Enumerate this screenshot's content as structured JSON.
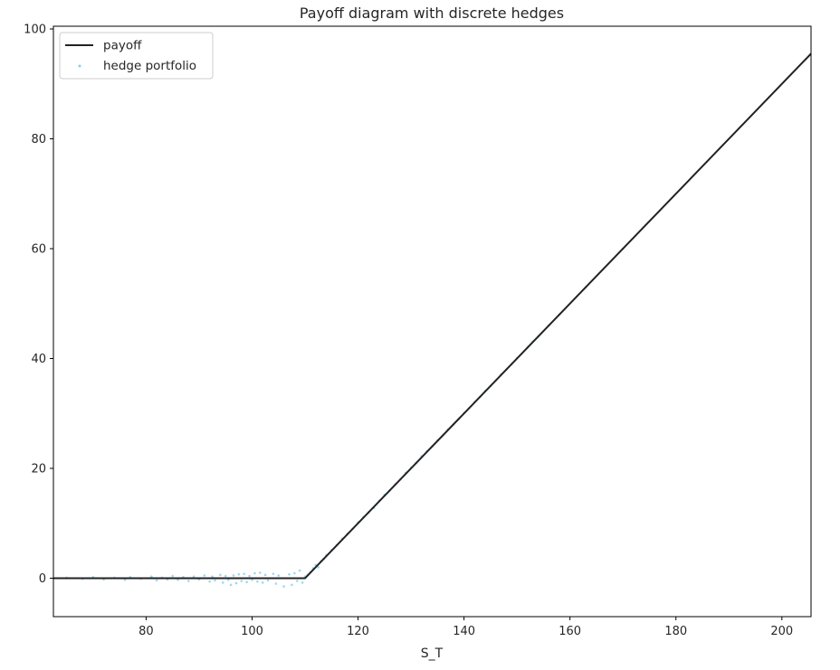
{
  "chart_data": {
    "type": "line",
    "title": "Payoff diagram with discrete hedges",
    "xlabel": "S_T",
    "ylabel": "",
    "xlim": [
      62.5,
      205.5
    ],
    "ylim": [
      -7,
      100.5
    ],
    "xticks": [
      80,
      100,
      120,
      140,
      160,
      180,
      200
    ],
    "yticks": [
      0,
      20,
      40,
      60,
      80,
      100
    ],
    "grid": false,
    "legend_position": "top-left",
    "series": [
      {
        "name": "payoff",
        "kind": "line",
        "color": "#222222",
        "x": [
          62.5,
          110,
          205.5
        ],
        "y": [
          0,
          0,
          95.5
        ]
      },
      {
        "name": "hedge portfolio",
        "kind": "scatter",
        "color": "#87ceeb",
        "x": [
          65,
          68,
          70,
          72,
          74,
          76,
          77,
          79,
          81,
          82,
          83,
          84,
          85,
          86,
          87,
          88,
          89,
          90,
          91,
          92,
          92.5,
          93,
          94,
          94.5,
          95,
          95.5,
          96,
          96.5,
          97,
          97.5,
          98,
          98.5,
          99,
          99.5,
          100,
          100.5,
          101,
          101.5,
          102,
          102.5,
          103,
          104,
          104.5,
          105,
          106,
          107,
          107.5,
          108,
          108.5,
          109,
          109.5,
          110,
          110.5,
          111,
          111.5,
          112,
          112.5,
          113,
          113.5,
          114,
          115,
          116,
          117,
          118,
          119,
          120,
          121,
          122,
          123,
          124,
          125,
          126,
          127,
          128,
          129,
          130,
          131,
          132,
          133,
          134,
          135,
          136,
          137,
          138,
          139,
          140,
          141,
          142,
          143,
          144,
          145,
          146,
          147,
          148,
          149,
          150,
          152,
          153,
          154,
          156,
          158,
          163,
          170
        ],
        "y": [
          0.1,
          -0.1,
          0.2,
          -0.2,
          0.1,
          -0.3,
          0.2,
          -0.1,
          0.3,
          -0.4,
          0.1,
          -0.2,
          0.4,
          -0.3,
          0.2,
          -0.5,
          0.3,
          -0.2,
          0.5,
          -0.6,
          0.3,
          -0.4,
          0.6,
          -0.8,
          0.4,
          -0.3,
          -1.2,
          0.5,
          -0.9,
          0.7,
          -0.5,
          0.8,
          -0.7,
          0.4,
          -0.3,
          0.9,
          -0.6,
          1.0,
          -0.8,
          0.6,
          -0.4,
          0.8,
          -1.0,
          0.5,
          -1.5,
          0.7,
          -1.2,
          0.9,
          -0.5,
          1.4,
          -0.8,
          0.3,
          0.6,
          1.1,
          1.8,
          2.4,
          2.0,
          3.1,
          3.5,
          4.2,
          5.1,
          6.0,
          7.2,
          8.1,
          9.0,
          10.2,
          11.1,
          12.0,
          12.8,
          14.1,
          15.2,
          16.0,
          17.1,
          18.0,
          19.2,
          20.1,
          21.0,
          22.2,
          23.1,
          24.0,
          25.1,
          26.0,
          27.1,
          28.0,
          29.0,
          30.1,
          31.0,
          32.1,
          33.0,
          34.1,
          35.0,
          36.0,
          37.1,
          38.0,
          39.0,
          40.1,
          42.0,
          43.1,
          44.0,
          46.0,
          48.0,
          53.0,
          60.0
        ]
      }
    ]
  }
}
